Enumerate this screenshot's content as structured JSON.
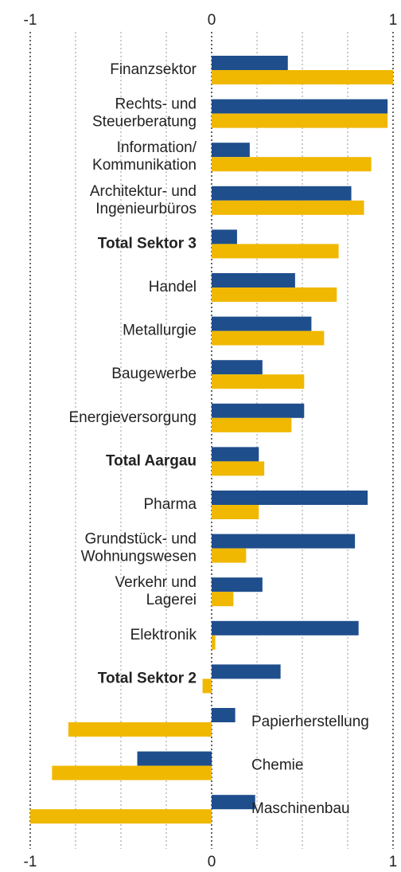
{
  "chart_data": {
    "type": "hbar",
    "categories": [
      "Finanzsektor",
      "Rechts- und\nSteuerberatung",
      "Information/\nKommunikation",
      "Architektur- und\nIngenieurbüros",
      "Total Sektor 3",
      "Handel",
      "Metallurgie",
      "Baugewerbe",
      "Energieversorgung",
      "Total Aargau",
      "Pharma",
      "Grundstück- und\nWohnungswesen",
      "Verkehr und\nLagerei",
      "Elektronik",
      "Total Sektor 2",
      "Papierherstellung",
      "Chemie",
      "Maschinenbau"
    ],
    "emphasized_categories": [
      4,
      9,
      14
    ],
    "series": [
      {
        "color": "#1f4e8c",
        "values": [
          0.42,
          0.97,
          0.21,
          0.77,
          0.14,
          0.46,
          0.55,
          0.28,
          0.51,
          0.26,
          0.86,
          0.79,
          0.28,
          0.81,
          0.38,
          0.13,
          -0.41,
          0.24
        ]
      },
      {
        "color": "#f0b800",
        "values": [
          1.0,
          0.97,
          0.88,
          0.84,
          0.7,
          0.69,
          0.62,
          0.51,
          0.44,
          0.29,
          0.26,
          0.19,
          0.12,
          0.02,
          -0.05,
          -0.79,
          -0.88,
          -1.0
        ]
      }
    ],
    "xlim": [
      -1,
      1
    ],
    "xticks": [
      -1,
      0,
      1
    ],
    "minor_grid": [
      -0.75,
      -0.5,
      -0.25,
      0.25,
      0.5,
      0.75
    ],
    "grid": true
  }
}
